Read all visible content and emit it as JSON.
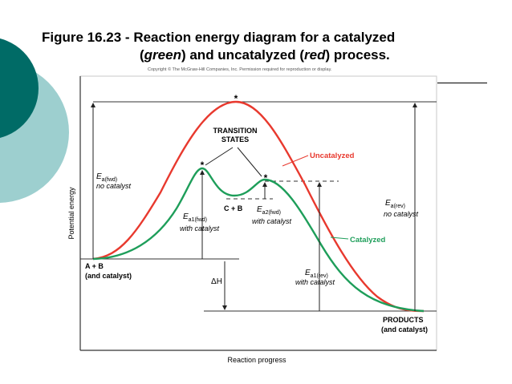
{
  "slide": {
    "title_line1": "Figure 16.23 - Reaction energy diagram for a catalyzed",
    "title_line2_green": "green",
    "title_line2_middle": ") and uncatalyzed (",
    "title_line2_red": "red",
    "title_line2_end": ") process.",
    "copyright": "Copyright © The McGraw-Hill Companies, Inc. Permission required for reproduction or display.",
    "accent_dark": "#006b66",
    "accent_light": "#9dcfcf"
  },
  "diagram": {
    "y_axis_label": "Potential energy",
    "x_axis_label": "Reaction progress",
    "transition_states_line1": "TRANSITION",
    "transition_states_line2": "STATES",
    "uncatalyzed_label": "Uncatalyzed",
    "catalyzed_label": "Catalyzed",
    "intermediate_label": "C + B",
    "reactants_line1": "A + B",
    "reactants_line2": "(and catalyst)",
    "products_line1": "PRODUCTS",
    "products_line2": "(and catalyst)",
    "ea_fwd_main": "E",
    "ea_fwd_sub": "a(fwd)",
    "ea_fwd_note": "no catalyst",
    "ea1_fwd_main": "E",
    "ea1_fwd_sub": "a1(fwd)",
    "ea1_fwd_note": "with catalyst",
    "ea2_fwd_main": "E",
    "ea2_fwd_sub": "a2(fwd)",
    "ea2_fwd_note": "with catalyst",
    "ea_rev_main": "E",
    "ea_rev_sub": "a(rev)",
    "ea_rev_note": "no catalyst",
    "ea1_rev_main": "E",
    "ea1_rev_sub": "a1(rev)",
    "ea1_rev_note": "with catalyst",
    "delta_h": "ΔH",
    "star": "*",
    "uncatalyzed_color": "#e8392e",
    "catalyzed_color": "#1e9e5a"
  }
}
